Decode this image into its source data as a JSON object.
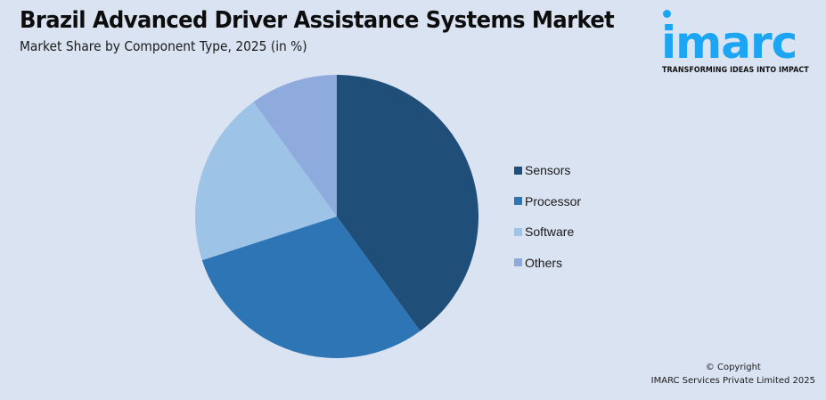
{
  "header": {
    "title": "Brazil Advanced Driver Assistance Systems Market",
    "subtitle": "Market Share by Component Type, 2025 (in %)"
  },
  "logo": {
    "word": "imarc",
    "tagline": "TRANSFORMING IDEAS INTO IMPACT",
    "color": "#1ba5f2"
  },
  "footer": {
    "line1": "© Copyright",
    "line2": "IMARC Services Private Limited 2025"
  },
  "chart_data": {
    "type": "pie",
    "title": "Brazil Advanced Driver Assistance Systems Market",
    "subtitle": "Market Share by Component Type, 2025 (in %)",
    "categories": [
      "Sensors",
      "Processor",
      "Software",
      "Others"
    ],
    "values": [
      40,
      30,
      20,
      10
    ],
    "colors": [
      "#1f4e79",
      "#2e75b6",
      "#9dc3e6",
      "#8faadc"
    ],
    "start_angle": "12 o'clock, clockwise",
    "legend_position": "right",
    "data_labels": false
  },
  "legend": {
    "items": [
      {
        "label": "Sensors",
        "color": "#1f4e79"
      },
      {
        "label": "Processor",
        "color": "#2e75b6"
      },
      {
        "label": "Software",
        "color": "#9dc3e6"
      },
      {
        "label": "Others",
        "color": "#8faadc"
      }
    ]
  }
}
